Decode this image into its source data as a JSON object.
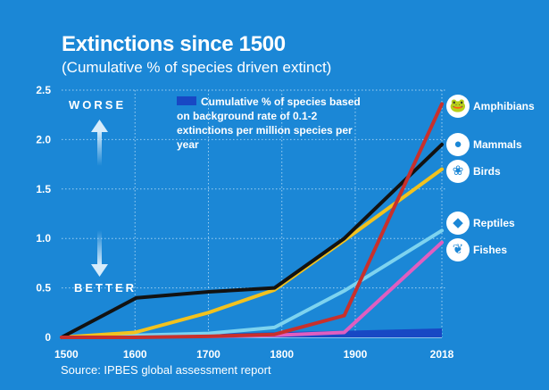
{
  "chart_data": {
    "type": "line",
    "title": "Extinctions since 1500",
    "subtitle": "(Cumulative % of species driven extinct)",
    "xlim": [
      1500,
      2018
    ],
    "ylim": [
      0,
      2.5
    ],
    "grid": true,
    "x_ticks": [
      "1500",
      "1600",
      "1700",
      "1800",
      "1900",
      "2018"
    ],
    "y_ticks": [
      "0",
      "0.5",
      "1.0",
      "1.5",
      "2.0",
      "2.5"
    ],
    "background_band": {
      "label": "Cumulative % of species based on background rate of 0.1-2 extinctions per million species per year",
      "x": [
        1500,
        2018
      ],
      "y_top": [
        0.0,
        0.09
      ],
      "color": "#1848c4"
    },
    "series": [
      {
        "name": "Amphibians",
        "color": "#c8302c",
        "x": [
          1500,
          1600,
          1700,
          1790,
          1885,
          2018
        ],
        "y": [
          0.0,
          0.0,
          0.01,
          0.03,
          0.22,
          2.36
        ]
      },
      {
        "name": "Mammals",
        "color": "#121212",
        "x": [
          1500,
          1602,
          1700,
          1790,
          1885,
          2018
        ],
        "y": [
          0.0,
          0.4,
          0.46,
          0.5,
          1.0,
          1.95
        ]
      },
      {
        "name": "Birds",
        "color": "#f2c21e",
        "x": [
          1500,
          1600,
          1700,
          1790,
          1885,
          2018
        ],
        "y": [
          0.0,
          0.05,
          0.25,
          0.48,
          0.98,
          1.7
        ]
      },
      {
        "name": "Reptiles",
        "color": "#7dd3ef",
        "x": [
          1500,
          1600,
          1700,
          1790,
          1885,
          2018
        ],
        "y": [
          0.0,
          0.02,
          0.04,
          0.1,
          0.47,
          1.08
        ]
      },
      {
        "name": "Fishes",
        "color": "#e05ec0",
        "x": [
          1500,
          1600,
          1700,
          1790,
          1885,
          2018
        ],
        "y": [
          0.0,
          0.01,
          0.01,
          0.02,
          0.05,
          0.96
        ]
      }
    ]
  },
  "annotations": {
    "worse": "WORSE",
    "better": "BETTER"
  },
  "source": "Source: IPBES global assessment report",
  "icons": {
    "Amphibians": "frog-icon",
    "Mammals": "mammal-icon",
    "Birds": "bird-icon",
    "Reptiles": "reptile-icon",
    "Fishes": "fish-icon"
  },
  "colors": {
    "background": "#1b87d6",
    "grid": "#9fd0f2",
    "arrow": "#b7dcf7"
  }
}
